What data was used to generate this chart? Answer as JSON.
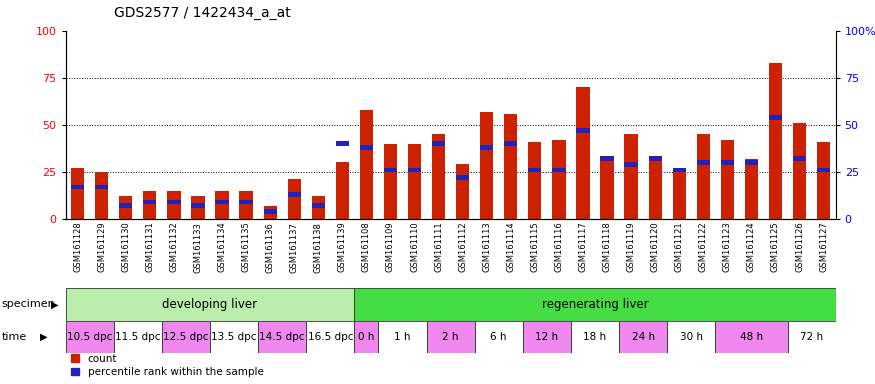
{
  "title": "GDS2577 / 1422434_a_at",
  "gsm_ids": [
    "GSM161128",
    "GSM161129",
    "GSM161130",
    "GSM161131",
    "GSM161132",
    "GSM161133",
    "GSM161134",
    "GSM161135",
    "GSM161136",
    "GSM161137",
    "GSM161138",
    "GSM161139",
    "GSM161108",
    "GSM161109",
    "GSM161110",
    "GSM161111",
    "GSM161112",
    "GSM161113",
    "GSM161114",
    "GSM161115",
    "GSM161116",
    "GSM161117",
    "GSM161118",
    "GSM161119",
    "GSM161120",
    "GSM161121",
    "GSM161122",
    "GSM161123",
    "GSM161124",
    "GSM161125",
    "GSM161126",
    "GSM161127"
  ],
  "count_values": [
    27,
    25,
    12,
    15,
    15,
    12,
    15,
    15,
    7,
    21,
    12,
    30,
    58,
    40,
    40,
    45,
    29,
    57,
    56,
    41,
    42,
    70,
    32,
    45,
    32,
    25,
    45,
    42,
    32,
    83,
    51,
    41
  ],
  "percentile_values": [
    17,
    17,
    7,
    9,
    9,
    7,
    9,
    9,
    4,
    13,
    7,
    40,
    38,
    26,
    26,
    40,
    22,
    38,
    40,
    26,
    26,
    47,
    32,
    29,
    32,
    26,
    30,
    30,
    30,
    54,
    32,
    26
  ],
  "bar_color": "#cc2200",
  "percentile_color": "#2222bb",
  "specimen_groups": [
    {
      "label": "developing liver",
      "start": 0,
      "end": 12,
      "color": "#bbeeaa"
    },
    {
      "label": "regenerating liver",
      "start": 12,
      "end": 32,
      "color": "#44dd44"
    }
  ],
  "time_groups": [
    {
      "label": "10.5 dpc",
      "start": 0,
      "end": 2,
      "color": "#ee88ee"
    },
    {
      "label": "11.5 dpc",
      "start": 2,
      "end": 4,
      "color": "#ffffff"
    },
    {
      "label": "12.5 dpc",
      "start": 4,
      "end": 6,
      "color": "#ee88ee"
    },
    {
      "label": "13.5 dpc",
      "start": 6,
      "end": 8,
      "color": "#ffffff"
    },
    {
      "label": "14.5 dpc",
      "start": 8,
      "end": 10,
      "color": "#ee88ee"
    },
    {
      "label": "16.5 dpc",
      "start": 10,
      "end": 12,
      "color": "#ffffff"
    },
    {
      "label": "0 h",
      "start": 12,
      "end": 13,
      "color": "#ee88ee"
    },
    {
      "label": "1 h",
      "start": 13,
      "end": 15,
      "color": "#ffffff"
    },
    {
      "label": "2 h",
      "start": 15,
      "end": 17,
      "color": "#ee88ee"
    },
    {
      "label": "6 h",
      "start": 17,
      "end": 19,
      "color": "#ffffff"
    },
    {
      "label": "12 h",
      "start": 19,
      "end": 21,
      "color": "#ee88ee"
    },
    {
      "label": "18 h",
      "start": 21,
      "end": 23,
      "color": "#ffffff"
    },
    {
      "label": "24 h",
      "start": 23,
      "end": 25,
      "color": "#ee88ee"
    },
    {
      "label": "30 h",
      "start": 25,
      "end": 27,
      "color": "#ffffff"
    },
    {
      "label": "48 h",
      "start": 27,
      "end": 30,
      "color": "#ee88ee"
    },
    {
      "label": "72 h",
      "start": 30,
      "end": 32,
      "color": "#ffffff"
    }
  ],
  "ylim": [
    0,
    100
  ],
  "yticks": [
    0,
    25,
    50,
    75,
    100
  ],
  "right_ytick_labels": [
    "0",
    "25",
    "50",
    "75",
    "100%"
  ],
  "bg_color": "#ffffff",
  "legend_count_label": "count",
  "legend_pct_label": "percentile rank within the sample",
  "specimen_label": "specimen",
  "time_label": "time"
}
